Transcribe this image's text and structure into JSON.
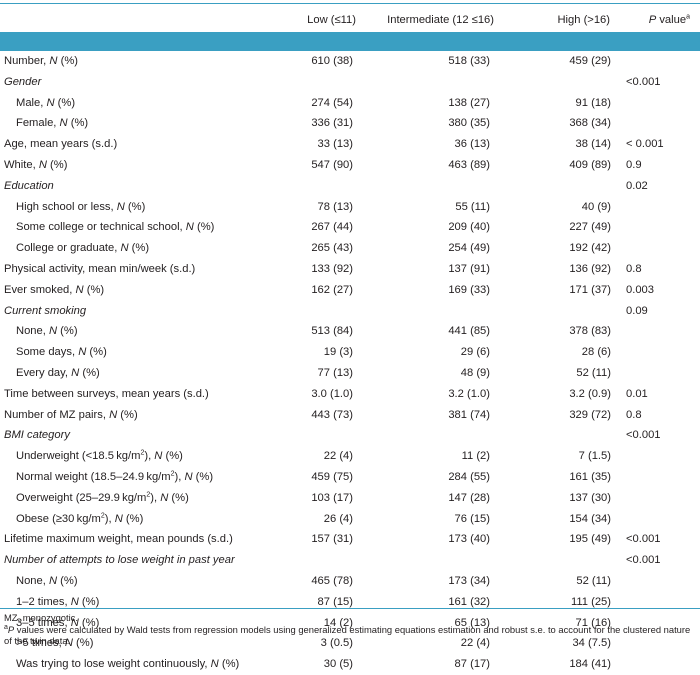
{
  "header": {
    "col1": "Low (≤11)",
    "col2": "Intermediate (12 ≤16)",
    "col3": "High (>16)",
    "col4_p": "P",
    "col4_rest": " value",
    "col4_sup": "a"
  },
  "rows": [
    {
      "pre": "Number, ",
      "it": "N",
      "post": " (%)",
      "v1": "610 (38)",
      "v2": "518 (33)",
      "v3": "459 (29)",
      "p": ""
    },
    {
      "label": "Gender",
      "section": true,
      "p": "<0.001"
    },
    {
      "pre": "Male, ",
      "it": "N",
      "post": " (%)",
      "indent": true,
      "v1": "274 (54)",
      "v2": "138 (27)",
      "v3": "91 (18)",
      "p": ""
    },
    {
      "pre": "Female, ",
      "it": "N",
      "post": " (%)",
      "indent": true,
      "v1": "336 (31)",
      "v2": "380 (35)",
      "v3": "368 (34)",
      "p": ""
    },
    {
      "label": "Age, mean years (s.d.)",
      "v1": "33 (13)",
      "v2": "36 (13)",
      "v3": "38 (14)",
      "p": "< 0.001"
    },
    {
      "pre": "White, ",
      "it": "N",
      "post": " (%)",
      "v1": "547 (90)",
      "v2": "463 (89)",
      "v3": "409 (89)",
      "p": "0.9"
    },
    {
      "label": "Education",
      "section": true,
      "p": "0.02"
    },
    {
      "pre": "High school or less, ",
      "it": "N",
      "post": " (%)",
      "indent": true,
      "v1": "78 (13)",
      "v2": "55 (11)",
      "v3": "40 (9)",
      "p": ""
    },
    {
      "pre": "Some college or technical school, ",
      "it": "N",
      "post": " (%)",
      "indent": true,
      "v1": "267 (44)",
      "v2": "209 (40)",
      "v3": "227 (49)",
      "p": ""
    },
    {
      "pre": "College or graduate, ",
      "it": "N",
      "post": " (%)",
      "indent": true,
      "v1": "265 (43)",
      "v2": "254 (49)",
      "v3": "192 (42)",
      "p": ""
    },
    {
      "label": "Physical activity, mean min/week (s.d.)",
      "v1": "133 (92)",
      "v2": "137 (91)",
      "v3": "136 (92)",
      "p": "0.8"
    },
    {
      "pre": "Ever smoked, ",
      "it": "N",
      "post": " (%)",
      "v1": "162 (27)",
      "v2": "169 (33)",
      "v3": "171 (37)",
      "p": "0.003"
    },
    {
      "label": "Current smoking",
      "section": true,
      "p": "0.09"
    },
    {
      "pre": "None, ",
      "it": "N",
      "post": " (%)",
      "indent": true,
      "v1": "513 (84)",
      "v2": "441 (85)",
      "v3": "378 (83)",
      "p": ""
    },
    {
      "pre": "Some days, ",
      "it": "N",
      "post": " (%)",
      "indent": true,
      "v1": "19 (3)",
      "v2": "29 (6)",
      "v3": "28 (6)",
      "p": ""
    },
    {
      "pre": "Every day, ",
      "it": "N",
      "post": " (%)",
      "indent": true,
      "v1": "77 (13)",
      "v2": "48 (9)",
      "v3": "52 (11)",
      "p": ""
    },
    {
      "label": "Time between surveys, mean years (s.d.)",
      "v1": "3.0 (1.0)",
      "v2": "3.2 (1.0)",
      "v3": "3.2 (0.9)",
      "p": "0.01"
    },
    {
      "pre": "Number of MZ pairs, ",
      "it": "N",
      "post": " (%)",
      "v1": "443 (73)",
      "v2": "381 (74)",
      "v3": "329 (72)",
      "p": "0.8"
    },
    {
      "label": "BMI category",
      "section": true,
      "p": "<0.001"
    },
    {
      "pre": "Underweight (<18.5 kg/m",
      "sup": "2",
      "post2": "), ",
      "it": "N",
      "post": " (%)",
      "indent": true,
      "v1": "22 (4)",
      "v2": "11 (2)",
      "v3": "7 (1.5)",
      "p": ""
    },
    {
      "pre": "Normal weight (18.5–24.9 kg/m",
      "sup": "2",
      "post2": "), ",
      "it": "N",
      "post": " (%)",
      "indent": true,
      "v1": "459 (75)",
      "v2": "284 (55)",
      "v3": "161 (35)",
      "p": ""
    },
    {
      "pre": "Overweight (25–29.9 kg/m",
      "sup": "2",
      "post2": "), ",
      "it": "N",
      "post": " (%)",
      "indent": true,
      "v1": "103 (17)",
      "v2": "147 (28)",
      "v3": "137 (30)",
      "p": ""
    },
    {
      "pre": "Obese (≥30 kg/m",
      "sup": "2",
      "post2": "), ",
      "it": "N",
      "post": " (%)",
      "indent": true,
      "v1": "26 (4)",
      "v2": "76 (15)",
      "v3": "154 (34)",
      "p": ""
    },
    {
      "label": "Lifetime maximum weight, mean pounds (s.d.)",
      "v1": "157 (31)",
      "v2": "173 (40)",
      "v3": "195 (49)",
      "p": "<0.001"
    },
    {
      "label": "Number of attempts to lose weight in past year",
      "section": true,
      "p": "<0.001"
    },
    {
      "pre": "None, ",
      "it": "N",
      "post": " (%)",
      "indent": true,
      "v1": "465 (78)",
      "v2": "173 (34)",
      "v3": "52 (11)",
      "p": ""
    },
    {
      "pre": "1–2 times, ",
      "it": "N",
      "post": " (%)",
      "indent": true,
      "v1": "87 (15)",
      "v2": "161 (32)",
      "v3": "111 (25)",
      "p": ""
    },
    {
      "pre": "3–5 times, ",
      "it": "N",
      "post": " (%)",
      "indent": true,
      "v1": "14 (2)",
      "v2": "65 (13)",
      "v3": "71 (16)",
      "p": ""
    },
    {
      "pre": ">5 times, ",
      "it": "N",
      "post": " (%)",
      "indent": true,
      "v1": "3 (0.5)",
      "v2": "22 (4)",
      "v3": "34 (7.5)",
      "p": ""
    },
    {
      "pre": "Was trying to lose weight continuously, ",
      "it": "N",
      "post": " (%)",
      "indent": true,
      "v1": "30 (5)",
      "v2": "87 (17)",
      "v3": "184 (41)",
      "p": ""
    }
  ],
  "footnotes": {
    "abbrev": "MZ, monozygotic.",
    "note_sup": "a",
    "note_p": "P",
    "note_text": " values were calculated by Wald tests from regression models using generalized estimating equations estimation and robust s.e. to account for the clustered nature of the twin data."
  }
}
